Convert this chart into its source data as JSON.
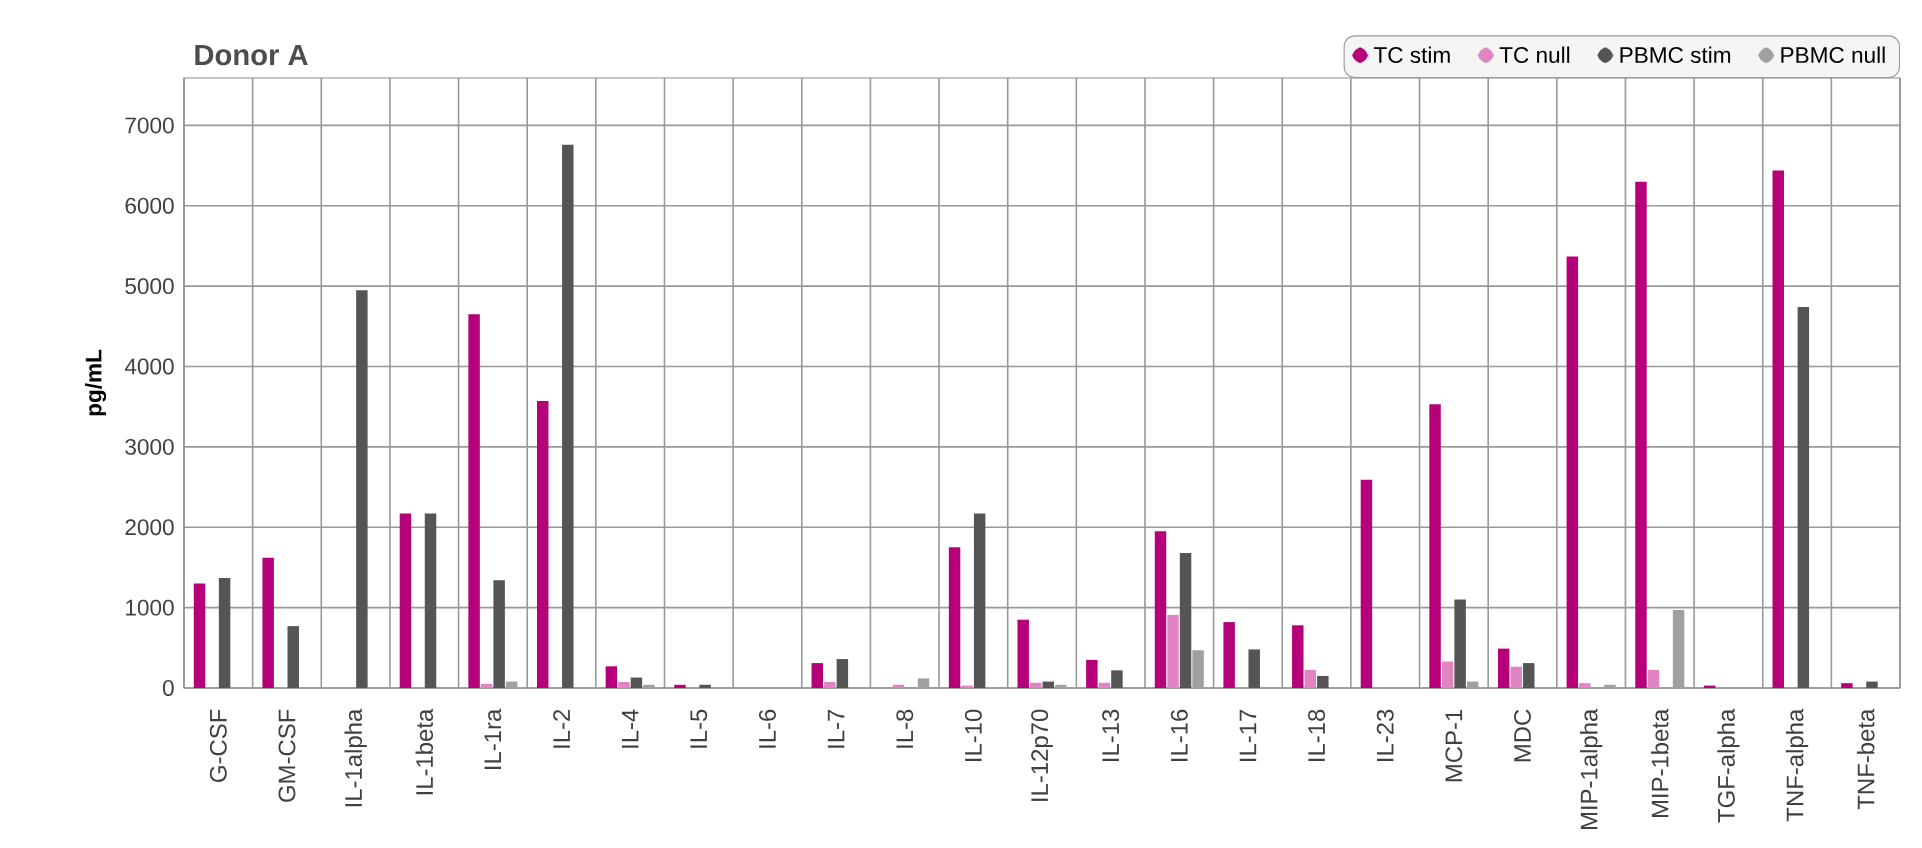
{
  "chart_data": {
    "type": "bar",
    "title": "Donor A",
    "ylabel": "pg/mL",
    "categories": [
      "G-CSF",
      "GM-CSF",
      "IL-1alpha",
      "IL-1beta",
      "IL-1ra",
      "IL-2",
      "IL-4",
      "IL-5",
      "IL-6",
      "IL-7",
      "IL-8",
      "IL-10",
      "IL-12p70",
      "IL-13",
      "IL-16",
      "IL-17",
      "IL-18",
      "IL-23",
      "MCP-1",
      "MDC",
      "MIP-1alpha",
      "MIP-1beta",
      "TGF-alpha",
      "TNF-alpha",
      "TNF-beta"
    ],
    "series": [
      {
        "name": "TC stim",
        "color": "#b5007a",
        "values": [
          1300,
          1620,
          null,
          2170,
          4650,
          3570,
          270,
          40,
          null,
          310,
          null,
          1750,
          850,
          350,
          1950,
          820,
          780,
          2590,
          3530,
          490,
          5370,
          6300,
          30,
          6440,
          60
        ]
      },
      {
        "name": "TC null",
        "color": "#e085c2",
        "values": [
          0,
          0,
          0,
          0,
          50,
          0,
          75,
          0,
          0,
          75,
          40,
          30,
          65,
          65,
          910,
          0,
          225,
          0,
          330,
          265,
          60,
          225,
          0,
          0,
          0
        ]
      },
      {
        "name": "PBMC stim",
        "color": "#555555",
        "values": [
          1370,
          770,
          4950,
          2170,
          1340,
          6760,
          130,
          40,
          null,
          360,
          null,
          2170,
          80,
          220,
          1680,
          480,
          150,
          0,
          1100,
          310,
          null,
          null,
          0,
          4740,
          80
        ]
      },
      {
        "name": "PBMC null",
        "color": "#a0a0a0",
        "values": [
          0,
          0,
          0,
          0,
          80,
          0,
          40,
          0,
          0,
          0,
          120,
          0,
          40,
          0,
          470,
          0,
          0,
          0,
          80,
          null,
          40,
          970,
          0,
          0,
          0
        ]
      }
    ],
    "ylim": [
      0,
      7590
    ],
    "yticks": [
      0,
      1000,
      2000,
      3000,
      4000,
      5000,
      6000,
      7000
    ],
    "grid": true,
    "legend": "top right"
  }
}
